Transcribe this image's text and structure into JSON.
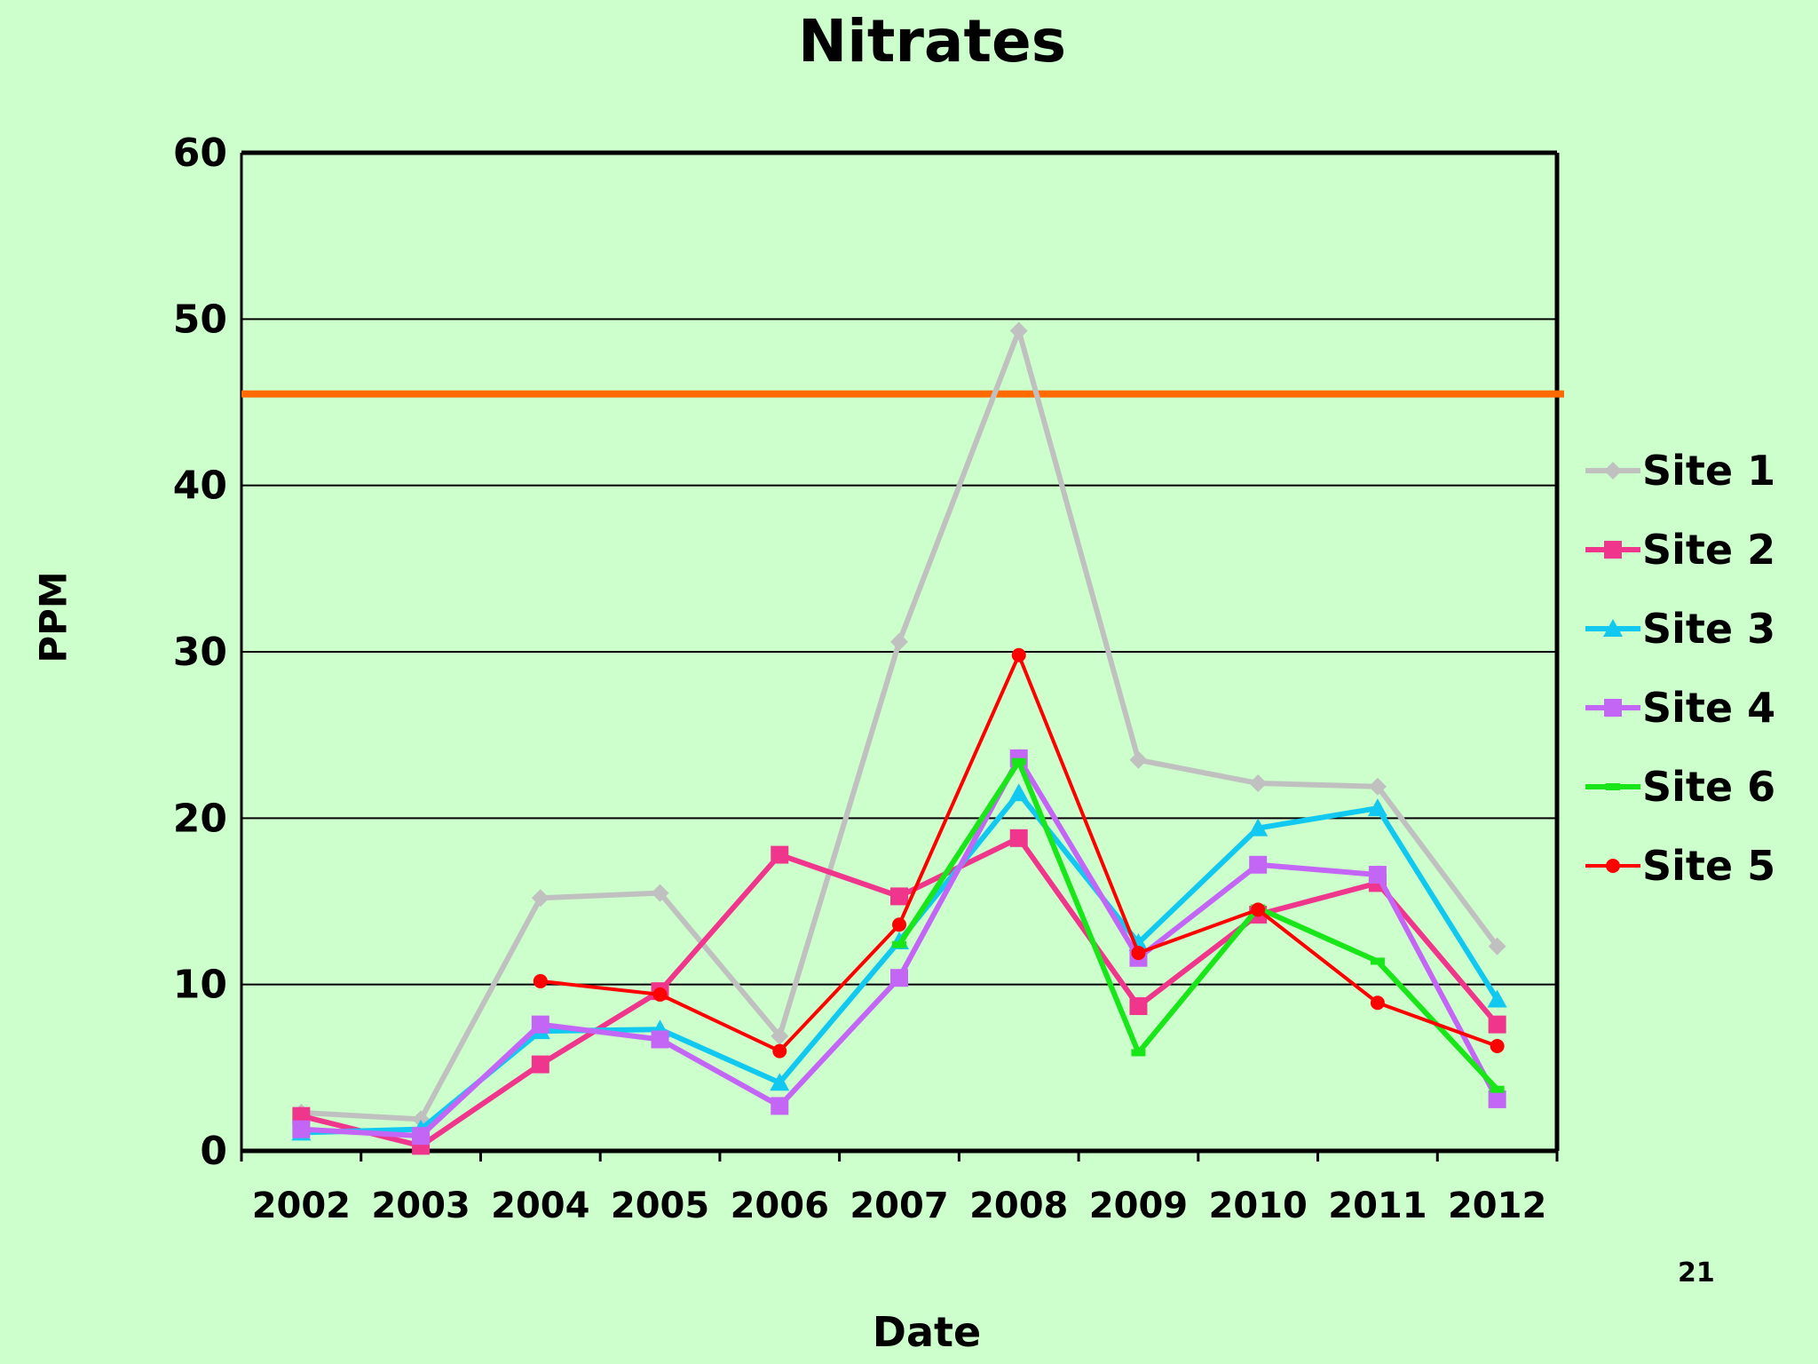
{
  "chart_data": {
    "type": "line",
    "title": "Nitrates",
    "xlabel": "Date",
    "ylabel": "PPM",
    "categories": [
      "2002",
      "2003",
      "2004",
      "2005",
      "2006",
      "2007",
      "2008",
      "2009",
      "2010",
      "2011",
      "2012"
    ],
    "ylim": [
      0,
      60
    ],
    "yticks": [
      0,
      10,
      20,
      30,
      40,
      50,
      60
    ],
    "grid": true,
    "legend_position": "right",
    "reference_line": {
      "value": 45.5,
      "color": "#ff6a00"
    },
    "series": [
      {
        "name": "Site 1",
        "color": "#c0c0c0",
        "marker": "diamond",
        "width": 6,
        "values": [
          2.3,
          1.9,
          15.2,
          15.5,
          6.9,
          30.6,
          49.3,
          23.5,
          22.1,
          21.9,
          12.3
        ]
      },
      {
        "name": "Site 2",
        "color": "#f0368c",
        "marker": "square",
        "width": 6,
        "values": [
          2.1,
          0.3,
          5.2,
          9.6,
          17.8,
          15.3,
          18.8,
          8.7,
          14.2,
          16.1,
          7.6
        ]
      },
      {
        "name": "Site 3",
        "color": "#10c8f0",
        "marker": "triangle",
        "width": 6,
        "values": [
          1.1,
          1.3,
          7.2,
          7.3,
          4.1,
          12.6,
          21.5,
          12.5,
          19.4,
          20.6,
          9.1
        ]
      },
      {
        "name": "Site 4",
        "color": "#c466f5",
        "marker": "square",
        "width": 6,
        "values": [
          1.3,
          0.9,
          7.6,
          6.7,
          2.7,
          10.4,
          23.6,
          11.6,
          17.2,
          16.6,
          3.1
        ]
      },
      {
        "name": "Site 6",
        "color": "#19e619",
        "marker": "dash",
        "width": 6,
        "values": [
          null,
          null,
          null,
          null,
          null,
          12.4,
          23.4,
          5.9,
          14.6,
          11.4,
          3.7
        ]
      },
      {
        "name": "Site 5",
        "color": "#ff0000",
        "marker": "circle",
        "width": 4,
        "values": [
          null,
          null,
          10.2,
          9.4,
          6.0,
          13.6,
          29.8,
          11.9,
          14.5,
          8.9,
          6.3
        ]
      }
    ]
  },
  "slide_number": "21"
}
